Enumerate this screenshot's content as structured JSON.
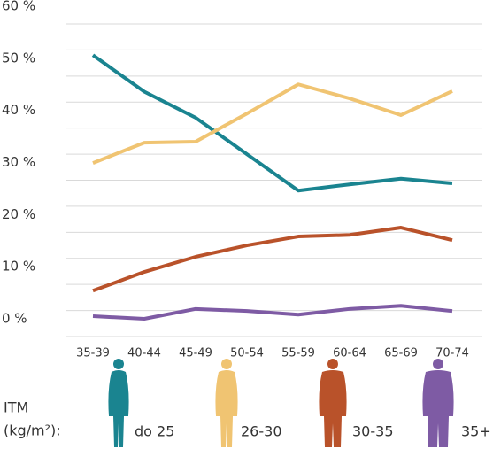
{
  "chart_data": {
    "type": "line",
    "categories": [
      "35-39",
      "40-44",
      "45-49",
      "50-54",
      "55-59",
      "60-64",
      "65-69",
      "70-74"
    ],
    "series": [
      {
        "name": "do 25",
        "color": "#1a8490",
        "values": [
          54,
          47,
          42,
          35,
          28,
          29.2,
          30.3,
          29.4
        ]
      },
      {
        "name": "26-30",
        "color": "#f0c472",
        "values": [
          33.3,
          37.2,
          37.4,
          42.8,
          48.4,
          45.7,
          42.5,
          47.1
        ]
      },
      {
        "name": "30-35",
        "color": "#b9522a",
        "values": [
          8.8,
          12.4,
          15.3,
          17.5,
          19.2,
          19.5,
          20.9,
          18.5
        ]
      },
      {
        "name": "35+",
        "color": "#7e5ba4",
        "values": [
          3.9,
          3.4,
          5.3,
          4.9,
          4.2,
          5.3,
          5.9,
          4.9
        ]
      }
    ],
    "ylim": [
      0,
      60
    ],
    "yticks": [
      {
        "value": 0,
        "label": "0 %"
      },
      {
        "value": 10,
        "label": "10 %"
      },
      {
        "value": 20,
        "label": "20 %"
      },
      {
        "value": 30,
        "label": "30 %"
      },
      {
        "value": 40,
        "label": "40 %"
      },
      {
        "value": 50,
        "label": "50 %"
      },
      {
        "value": 60,
        "label": "60 %"
      }
    ],
    "minor_yticks": [
      5,
      15,
      25,
      35,
      45,
      55
    ],
    "grid": true,
    "legend_title": [
      "ITM",
      "(kg/m²):"
    ]
  }
}
